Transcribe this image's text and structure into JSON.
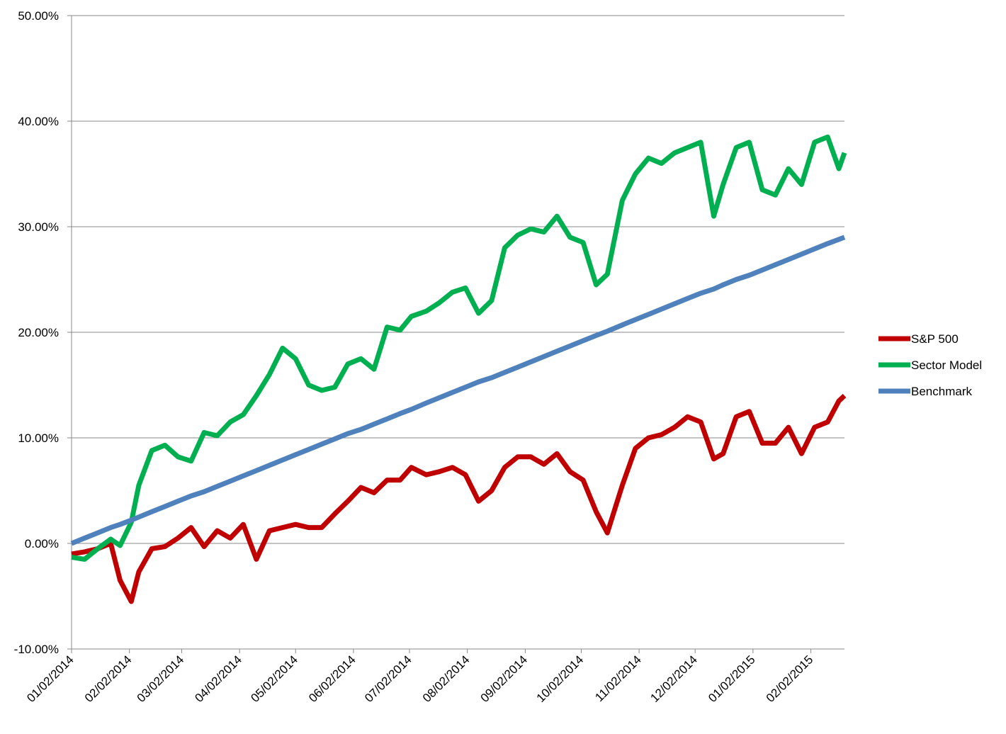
{
  "chart_data": {
    "type": "line",
    "x": [
      "01/02/2014",
      "01/09/2014",
      "01/16/2014",
      "01/23/2014",
      "01/28/2014",
      "02/03/2014",
      "02/07/2014",
      "02/14/2014",
      "02/21/2014",
      "02/28/2014",
      "03/07/2014",
      "03/14/2014",
      "03/21/2014",
      "03/28/2014",
      "04/04/2014",
      "04/11/2014",
      "04/18/2014",
      "04/25/2014",
      "05/02/2014",
      "05/09/2014",
      "05/16/2014",
      "05/23/2014",
      "05/30/2014",
      "06/06/2014",
      "06/13/2014",
      "06/20/2014",
      "06/27/2014",
      "07/03/2014",
      "07/11/2014",
      "07/18/2014",
      "07/25/2014",
      "08/01/2014",
      "08/08/2014",
      "08/15/2014",
      "08/22/2014",
      "08/29/2014",
      "09/05/2014",
      "09/12/2014",
      "09/19/2014",
      "09/26/2014",
      "10/03/2014",
      "10/10/2014",
      "10/16/2014",
      "10/24/2014",
      "10/31/2014",
      "11/07/2014",
      "11/14/2014",
      "11/21/2014",
      "11/28/2014",
      "12/05/2014",
      "12/12/2014",
      "12/17/2014",
      "12/24/2014",
      "12/31/2014",
      "01/07/2015",
      "01/14/2015",
      "01/21/2015",
      "01/28/2015",
      "02/04/2015",
      "02/11/2015",
      "02/17/2015",
      "02/20/2015"
    ],
    "series": [
      {
        "name": "S&P 500",
        "color": "#c00000",
        "values": [
          -1.0,
          -0.8,
          -0.5,
          0.0,
          -3.5,
          -5.5,
          -2.7,
          -0.5,
          -0.3,
          0.5,
          1.5,
          -0.3,
          1.2,
          0.5,
          1.8,
          -1.5,
          1.2,
          1.5,
          1.8,
          1.5,
          1.5,
          2.8,
          4.0,
          5.3,
          4.8,
          6.0,
          6.0,
          7.2,
          6.5,
          6.8,
          7.2,
          6.5,
          4.0,
          5.0,
          7.2,
          8.2,
          8.2,
          7.5,
          8.5,
          6.8,
          6.0,
          3.0,
          1.0,
          5.5,
          9.0,
          10.0,
          10.3,
          11.0,
          12.0,
          11.5,
          8.0,
          8.5,
          12.0,
          12.5,
          9.5,
          9.5,
          11.0,
          8.5,
          11.0,
          11.5,
          13.5,
          14.0
        ]
      },
      {
        "name": "Sector Model",
        "color": "#00b050",
        "values": [
          -1.3,
          -1.5,
          -0.5,
          0.4,
          -0.2,
          2.0,
          5.5,
          8.8,
          9.3,
          8.2,
          7.8,
          10.5,
          10.2,
          11.5,
          12.2,
          14.0,
          16.0,
          18.5,
          17.5,
          15.0,
          14.5,
          14.8,
          17.0,
          17.5,
          16.5,
          20.5,
          20.2,
          21.5,
          22.0,
          22.8,
          23.8,
          24.2,
          21.8,
          23.0,
          28.0,
          29.2,
          29.8,
          29.5,
          31.0,
          29.0,
          28.5,
          24.5,
          25.5,
          32.5,
          35.0,
          36.5,
          36.0,
          37.0,
          37.5,
          38.0,
          31.0,
          34.0,
          37.5,
          38.0,
          33.5,
          33.0,
          35.5,
          34.0,
          38.0,
          38.5,
          35.5,
          37.0
        ]
      },
      {
        "name": "Benchmark",
        "color": "#4f81bd",
        "values": [
          0,
          0.5,
          1.0,
          1.5,
          1.8,
          2.2,
          2.5,
          3.0,
          3.5,
          4.0,
          4.5,
          4.9,
          5.4,
          5.9,
          6.4,
          6.9,
          7.4,
          7.9,
          8.4,
          8.9,
          9.4,
          9.9,
          10.4,
          10.8,
          11.3,
          11.8,
          12.3,
          12.7,
          13.3,
          13.8,
          14.3,
          14.8,
          15.3,
          15.7,
          16.2,
          16.7,
          17.2,
          17.7,
          18.2,
          18.7,
          19.2,
          19.7,
          20.1,
          20.7,
          21.2,
          21.7,
          22.2,
          22.7,
          23.2,
          23.7,
          24.1,
          24.5,
          25.0,
          25.4,
          25.9,
          26.4,
          26.9,
          27.4,
          27.9,
          28.4,
          28.8,
          29.0
        ]
      }
    ],
    "xlim": [
      "01/02/2014",
      "02/20/2015"
    ],
    "xticks": [
      "01/02/2014",
      "02/02/2014",
      "03/02/2014",
      "04/02/2014",
      "05/02/2014",
      "06/02/2014",
      "07/02/2014",
      "08/02/2014",
      "09/02/2014",
      "10/02/2014",
      "11/02/2014",
      "12/02/2014",
      "01/02/2015",
      "02/02/2015"
    ],
    "ylim": [
      -10,
      50
    ],
    "yticks": [
      {
        "value": -10,
        "label": "-10.00%"
      },
      {
        "value": 0,
        "label": "0.00%"
      },
      {
        "value": 10,
        "label": "10.00%"
      },
      {
        "value": 20,
        "label": "20.00%"
      },
      {
        "value": 30,
        "label": "30.00%"
      },
      {
        "value": 40,
        "label": "40.00%"
      },
      {
        "value": 50,
        "label": "50.00%"
      }
    ],
    "grid": true,
    "legend": "right"
  }
}
